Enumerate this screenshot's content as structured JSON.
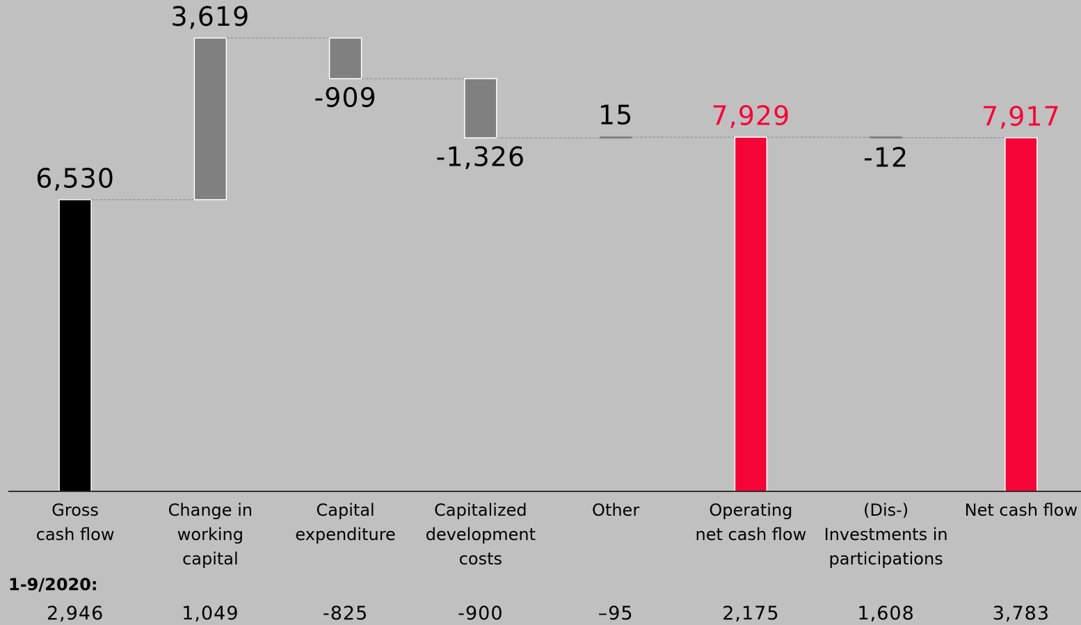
{
  "chart_data": {
    "type": "waterfall",
    "categories": [
      "Gross\ncash flow",
      "Change in\nworking\ncapital",
      "Capital\nexpenditure",
      "Capitalized\ndevelopment\ncosts",
      "Other",
      "Operating\nnet cash flow",
      "(Dis-)\nInvestments in\nparticipations",
      "Net cash flow"
    ],
    "values": [
      6530,
      3619,
      -909,
      -1326,
      15,
      7929,
      -12,
      7917
    ],
    "value_labels": [
      "6,530",
      "3,619",
      "-909",
      "-1,326",
      "15",
      "7,929",
      "-12",
      "7,917"
    ],
    "is_total": [
      true,
      false,
      false,
      false,
      false,
      true,
      false,
      true
    ],
    "colors": [
      "#000000",
      "#808080",
      "#808080",
      "#808080",
      "#808080",
      "#f50537",
      "#808080",
      "#f50537"
    ],
    "label_colors": [
      "#000000",
      "#000000",
      "#000000",
      "#000000",
      "#000000",
      "#f50537",
      "#000000",
      "#f50537"
    ],
    "ylim": [
      0,
      11000
    ],
    "comparison": {
      "label": "1-9/2020:",
      "values": [
        "2,946",
        "1,049",
        "-825",
        "-900",
        "–95",
        "2,175",
        "1,608",
        "3,783"
      ]
    }
  }
}
